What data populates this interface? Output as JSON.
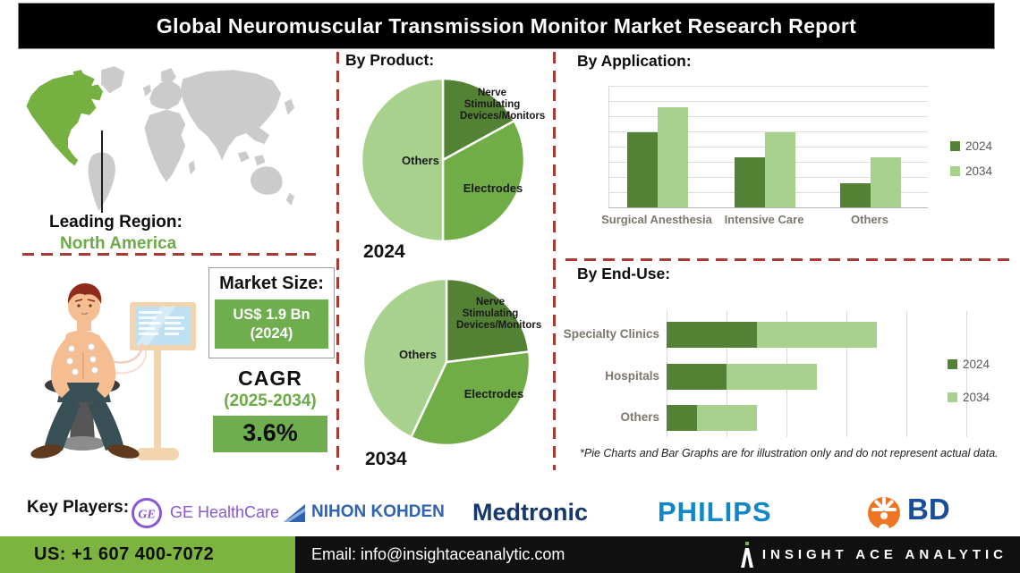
{
  "title": "Global Neuromuscular Transmission Monitor Market Research Report",
  "leading_region": {
    "label": "Leading Region:",
    "value": "North America"
  },
  "market_size": {
    "label": "Market Size:",
    "value": "US$ 1.9 Bn",
    "year": "(2024)"
  },
  "cagr": {
    "label": "CAGR",
    "period": "(2025-2034)",
    "value": "3.6%"
  },
  "sections": {
    "by_product": "By Product:",
    "by_application": "By Application:",
    "by_end_use": "By End-Use:"
  },
  "footnote": "*Pie Charts and Bar Graphs are for illustration only and do not represent actual data.",
  "key_players": {
    "label": "Key Players:",
    "ge_monogram": "GE",
    "companies": [
      {
        "name": "GE HealthCare",
        "icon": "ge-monogram-icon"
      },
      {
        "name": "NIHON KOHDEN",
        "icon": "nihon-kohden-flag-icon"
      },
      {
        "name": "Medtronic"
      },
      {
        "name": "PHILIPS"
      },
      {
        "name": "BD",
        "icon": "bd-starburst-icon"
      }
    ]
  },
  "footer": {
    "phone": "US: +1 607 400-7072",
    "email": "Email: info@insightaceanalytic.com",
    "brand": "INSIGHT ACE ANALYTIC"
  },
  "colors": {
    "accent_dark_green": "#548235",
    "accent_mid_green": "#70AD47",
    "accent_light_green": "#A9D18E",
    "map_highlight_green": "#76b041",
    "map_gray": "#cbcbcb",
    "dashed_line_red": "#a93a32",
    "footer_green": "#7db440",
    "title_bg": "#000000",
    "ge_purple": "#8a57d8",
    "nihon_kohden_blue": "#2f62b0",
    "medtronic_navy": "#16386e",
    "philips_blue": "#1186c8",
    "bd_blue": "#1a4e9b",
    "bd_orange": "#ee7623"
  },
  "chart_data": [
    {
      "type": "pie",
      "title": "2024",
      "section": "By Product",
      "labels": [
        "Nerve Stimulating Devices/Monitors",
        "Electrodes",
        "Others"
      ],
      "values": [
        17,
        33,
        50
      ],
      "colors": [
        "#548235",
        "#70AD47",
        "#A9D18E"
      ],
      "note": "illustrative shares, % of circle"
    },
    {
      "type": "pie",
      "title": "2034",
      "section": "By Product",
      "labels": [
        "Nerve Stimulating Devices/Monitors",
        "Electrodes",
        "Others"
      ],
      "values": [
        23,
        34,
        43
      ],
      "colors": [
        "#548235",
        "#70AD47",
        "#A9D18E"
      ],
      "note": "illustrative shares, % of circle"
    },
    {
      "type": "bar",
      "title": "By Application",
      "categories": [
        "Surgical Anesthesia",
        "Intensive Care",
        "Others"
      ],
      "series": [
        {
          "name": "2024",
          "color": "#548235",
          "values": [
            62,
            41,
            20
          ]
        },
        {
          "name": "2034",
          "color": "#A9D18E",
          "values": [
            82,
            62,
            41
          ]
        }
      ],
      "ylim": [
        0,
        100
      ],
      "grid": true,
      "legend_position": "right",
      "note": "unlabeled axis, values estimated from gridlines (illustrative)"
    },
    {
      "type": "stacked_bar_horizontal",
      "title": "By End-Use",
      "categories": [
        "Specialty Clinics",
        "Hospitals",
        "Others"
      ],
      "series": [
        {
          "name": "2024",
          "color": "#548235",
          "values": [
            1.5,
            1.0,
            0.5
          ]
        },
        {
          "name": "2034",
          "color": "#A9D18E",
          "values": [
            2.0,
            1.5,
            1.0
          ]
        }
      ],
      "xlim": [
        0,
        5
      ],
      "grid": true,
      "legend_position": "right",
      "note": "unlabeled axis, values in gridline units (illustrative)"
    }
  ]
}
